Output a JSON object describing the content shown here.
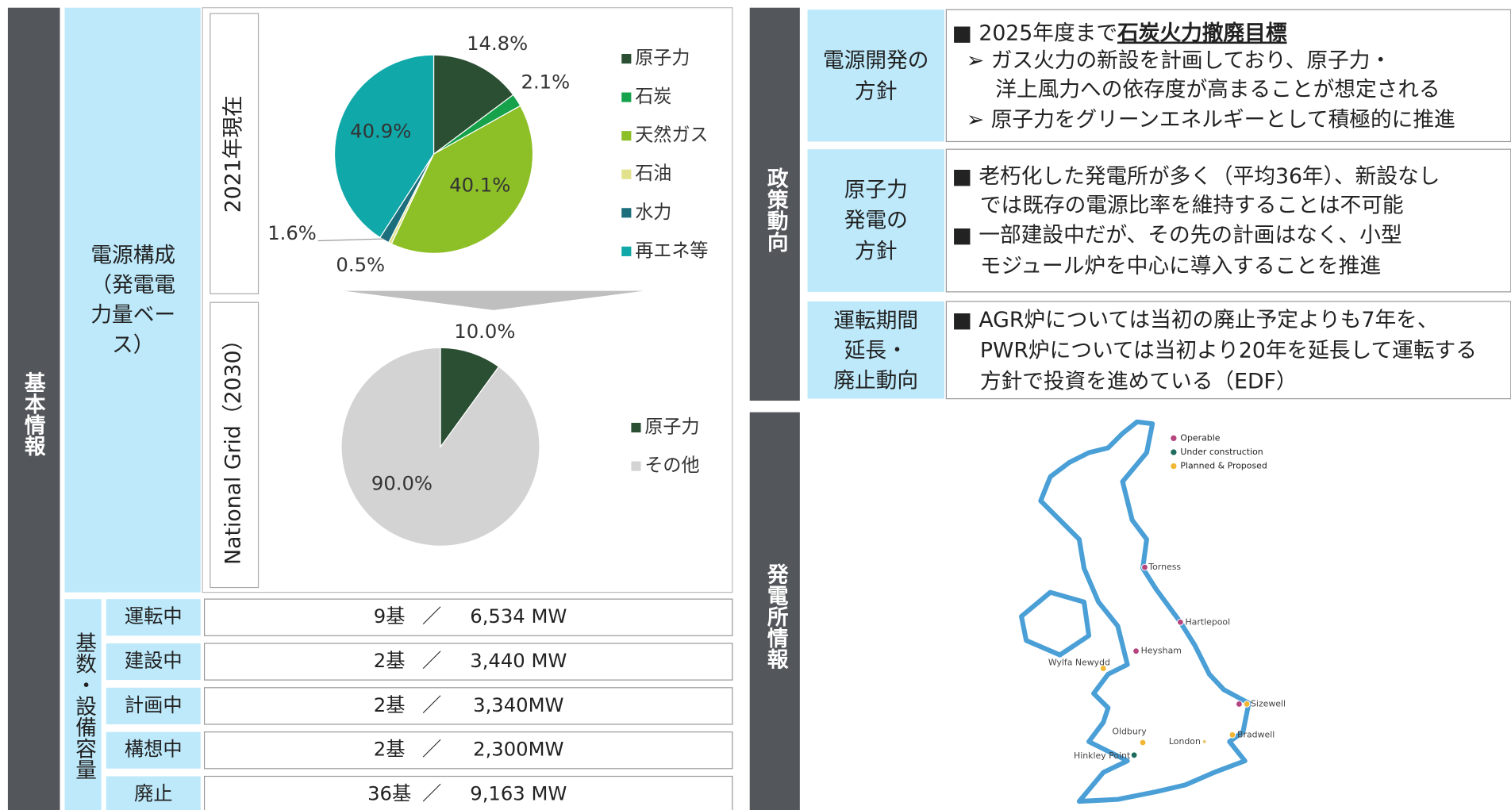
{
  "side_labels": {
    "basic": "基本情報",
    "policy": "政策動向",
    "plant": "発電所情報"
  },
  "composition": {
    "label": [
      "電源構成",
      "（発電電",
      "力量ベー",
      "ス）"
    ],
    "pie_2021": {
      "type": "pie",
      "title": "2021年現在",
      "categories": [
        "原子力",
        "石炭",
        "天然ガス",
        "石油",
        "水力",
        "再エネ等"
      ],
      "values": [
        14.8,
        2.1,
        40.1,
        0.5,
        1.6,
        40.9
      ],
      "value_labels": [
        "14.8%",
        "2.1%",
        "40.1%",
        "0.5%",
        "1.6%",
        "40.9%"
      ],
      "colors": [
        "#2b4f33",
        "#15a24a",
        "#8dbf27",
        "#e2e28c",
        "#1d6e7c",
        "#11a8a9"
      ]
    },
    "pie_2030": {
      "type": "pie",
      "title": "National Grid（2030）",
      "categories": [
        "原子力",
        "その他"
      ],
      "values": [
        10.0,
        90.0
      ],
      "value_labels": [
        "10.0%",
        "90.0%"
      ],
      "colors": [
        "#2b4f33",
        "#d3d3d3"
      ]
    }
  },
  "capacity": {
    "label": "基数・設備容量",
    "rows": [
      {
        "status": "運転中",
        "units": "9基",
        "sep": "／",
        "mw": "6,534 MW"
      },
      {
        "status": "建設中",
        "units": "2基",
        "sep": "／",
        "mw": "3,440 MW"
      },
      {
        "status": "計画中",
        "units": "2基",
        "sep": "／",
        "mw": "3,340MW"
      },
      {
        "status": "構想中",
        "units": "2基",
        "sep": "／",
        "mw": "2,300MW"
      },
      {
        "status": "廃止",
        "units": "36基",
        "sep": "／",
        "mw": "9,163 MW"
      }
    ]
  },
  "policy": {
    "rows": [
      {
        "heading": [
          "電源開発の",
          "方針"
        ],
        "lead": "■ 2025年度まで",
        "lead_bold": "石炭火力撤廃目標",
        "lines": [
          "➢ ガス火力の新設を計画しており、原子力・",
          "洋上風力への依存度が高まることが想定される",
          "➢ 原子力をグリーンエネルギーとして積極的に推進"
        ]
      },
      {
        "heading": [
          "原子力",
          "発電の",
          "方針"
        ],
        "lines": [
          "■ 老朽化した発電所が多く（平均36年）、新設なし",
          "では既存の電源比率を維持することは不可能",
          "■ 一部建設中だが、その先の計画はなく、小型",
          "モジュール炉を中心に導入することを推進"
        ]
      },
      {
        "heading": [
          "運転期間",
          "延長・",
          "廃止動向"
        ],
        "lines": [
          "■ AGR炉については当初の廃止予定よりも7年を、",
          "PWR炉については当初より20年を延長して運転する",
          "方針で投資を進めている（EDF）"
        ]
      }
    ]
  },
  "map": {
    "legend": [
      {
        "name": "Operable",
        "color": "#b5457f"
      },
      {
        "name": "Under construction",
        "color": "#1f6b5c"
      },
      {
        "name": "Planned & Proposed",
        "color": "#f2b632"
      }
    ],
    "sites": [
      {
        "name": "Torness",
        "colors": [
          "#b5457f"
        ]
      },
      {
        "name": "Hartlepool",
        "colors": [
          "#b5457f"
        ]
      },
      {
        "name": "Heysham",
        "colors": [
          "#b5457f"
        ]
      },
      {
        "name": "Wylfa Newydd",
        "colors": [
          "#f2b632"
        ]
      },
      {
        "name": "Sizewell",
        "colors": [
          "#b5457f",
          "#f2b632"
        ]
      },
      {
        "name": "Bradwell",
        "colors": [
          "#f2b632"
        ]
      },
      {
        "name": "London",
        "colors": [
          "#e8c46a"
        ]
      },
      {
        "name": "Oldbury",
        "colors": [
          "#f2b632"
        ]
      },
      {
        "name": "Hinkley Point",
        "colors": [
          "#1f6b5c"
        ]
      }
    ]
  }
}
